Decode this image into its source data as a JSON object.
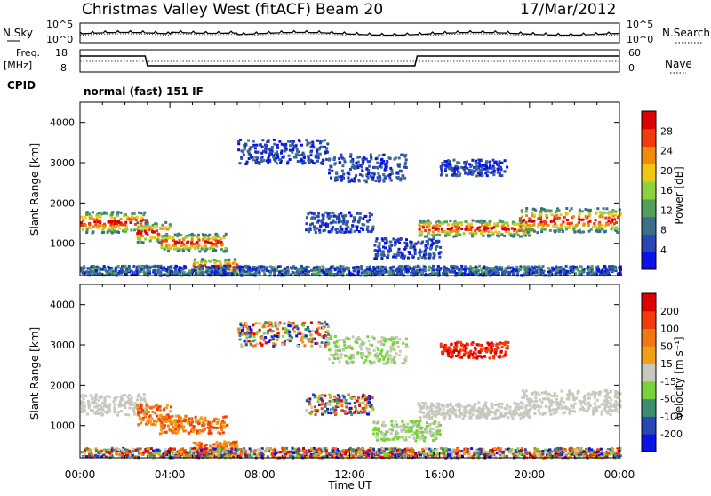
{
  "header": {
    "station": "Christmas Valley West (fitACF)",
    "beam": "Beam 20",
    "date": "17/Mar/2012"
  },
  "noise_panel": {
    "left_label": "N.Sky",
    "right_label": "N.Search",
    "left_ticks": [
      "10^5",
      "10^0"
    ],
    "right_ticks": [
      "10^5",
      "10^0"
    ]
  },
  "freq_panel": {
    "left_label_1": "Freq.",
    "left_label_2": "[MHz]",
    "right_label": "Nave",
    "left_ticks": [
      "18",
      "8"
    ],
    "right_ticks": [
      "60",
      "0"
    ]
  },
  "cpid": {
    "label": "CPID",
    "value": "normal (fast) 151 IF"
  },
  "colors": {
    "power_scale": [
      "#0a14e6",
      "#2846b4",
      "#3c6e8c",
      "#50a05a",
      "#8cd23c",
      "#f0c814",
      "#f08c0a",
      "#f03c0a",
      "#dc0000"
    ],
    "velocity_scale": [
      "#0a14e6",
      "#2846b4",
      "#3c8c6e",
      "#78d23c",
      "#c8c8be",
      "#f0a014",
      "#f07814",
      "#f03c0a",
      "#dc0000"
    ]
  },
  "chart_data": [
    {
      "type": "heatmap",
      "name": "power",
      "ylabel": "Slant Range [km]",
      "xlabel": "Time UT",
      "x_ticks": [
        "00:00",
        "04:00",
        "08:00",
        "12:00",
        "16:00",
        "20:00",
        "00:00"
      ],
      "y_ticks": [
        "1000",
        "2000",
        "3000",
        "4000"
      ],
      "ylim": [
        200,
        4500
      ],
      "xlim_hours": [
        0,
        24
      ],
      "colorbar_label": "Power [dB]",
      "colorbar_ticks": [
        "4",
        "8",
        "12",
        "16",
        "20",
        "24",
        "28"
      ],
      "colorbar_range": [
        0,
        32
      ]
    },
    {
      "type": "heatmap",
      "name": "velocity",
      "ylabel": "Slant Range [km]",
      "xlabel": "Time UT",
      "x_ticks": [
        "00:00",
        "04:00",
        "08:00",
        "12:00",
        "16:00",
        "20:00",
        "00:00"
      ],
      "y_ticks": [
        "1000",
        "2000",
        "3000",
        "4000"
      ],
      "ylim": [
        200,
        4500
      ],
      "xlim_hours": [
        0,
        24
      ],
      "colorbar_label": "Velocity [m s⁻¹]",
      "colorbar_ticks": [
        "200",
        "100",
        "50",
        "15",
        "-15",
        "-50",
        "-100",
        "-200"
      ]
    }
  ]
}
